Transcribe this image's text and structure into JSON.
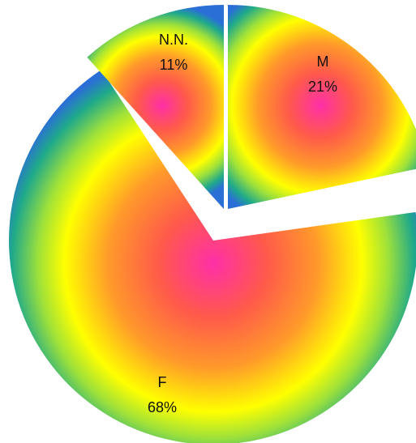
{
  "chart_data": {
    "type": "pie",
    "exploded": true,
    "slices": [
      {
        "label": "F",
        "value": 68,
        "value_label": "68%"
      },
      {
        "label": "M",
        "value": 21,
        "value_label": "21%"
      },
      {
        "label": "N.N.",
        "value": 11,
        "value_label": "11%"
      }
    ],
    "colors": {
      "center": "#ff2fa8",
      "mid_red": "#ff5a4a",
      "orange": "#ff9a2a",
      "yellow": "#ffff00",
      "green": "#9ee13a",
      "teal": "#1fa98a",
      "blue": "#2a6fd6"
    }
  }
}
